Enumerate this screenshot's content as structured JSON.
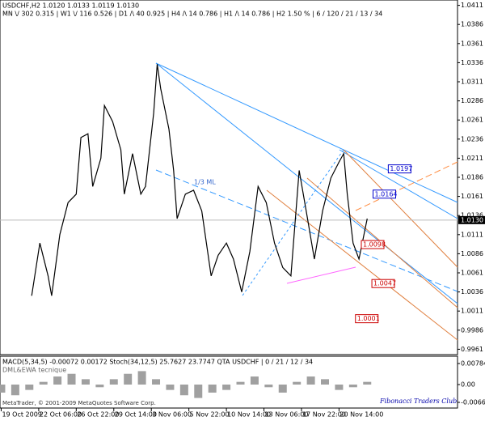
{
  "chart_data": {
    "type": "line",
    "title": "USDCHF,H2  1.0120 1.0133 1.0119 1.0130",
    "subtitle": "MN \\/ 302   0.315  |  W1 \\/ 116   0.526  |  D1 /\\ 40   0.925  |  H4 /\\ 14   0.786  |  H1 /\\ 14   0.786  |  H2   1.50 %  |  6 / 120 / 21 / 13 / 34",
    "x": [
      26,
      33,
      40,
      43,
      50,
      57,
      64,
      68,
      74,
      78,
      85,
      88,
      95,
      102,
      105,
      112,
      119,
      123,
      130,
      133,
      136,
      143,
      147,
      150,
      157,
      164,
      171,
      179,
      185,
      192,
      198,
      205,
      212,
      219,
      226,
      233,
      240,
      247,
      254,
      260,
      267,
      274,
      281,
      288,
      292,
      295,
      300,
      305,
      312
    ],
    "values": [
      1.0031,
      1.01,
      1.0057,
      1.0031,
      1.0111,
      1.0153,
      1.0164,
      1.0238,
      1.0243,
      1.0174,
      1.0211,
      1.028,
      1.0259,
      1.0222,
      1.0164,
      1.0217,
      1.0164,
      1.0174,
      1.027,
      1.0334,
      1.0302,
      1.0249,
      1.0195,
      1.0132,
      1.0164,
      1.0169,
      1.0142,
      1.0057,
      1.0084,
      1.01,
      1.0079,
      1.0036,
      1.0089,
      1.0174,
      1.0153,
      1.01,
      1.0068,
      1.0057,
      1.0195,
      1.0142,
      1.0079,
      1.0142,
      1.0185,
      1.0206,
      1.0217,
      1.0164,
      1.01,
      1.0079,
      1.0132
    ],
    "color": "#000000",
    "xlim": [
      -1,
      389
    ],
    "xticks": [
      {
        "value": 0,
        "label": "19 Oct 2009"
      },
      {
        "value": 32,
        "label": "22 Oct 06:00"
      },
      {
        "value": 64,
        "label": "26 Oct 22:00"
      },
      {
        "value": 96,
        "label": "29 Oct 14:00"
      },
      {
        "value": 128,
        "label": "3 Nov 06:00"
      },
      {
        "value": 160,
        "label": "5 Nov 22:00"
      },
      {
        "value": 192,
        "label": "10 Nov 14:00"
      },
      {
        "value": 224,
        "label": "13 Nov 06:00"
      },
      {
        "value": 256,
        "label": "17 Nov 22:00"
      },
      {
        "value": 288,
        "label": "20 Nov 14:00"
      }
    ],
    "ylim": [
      0.9954,
      1.0418
    ],
    "yticks": [
      1.0411,
      1.0386,
      1.0361,
      1.0336,
      1.0311,
      1.0286,
      1.0261,
      1.0236,
      1.0211,
      1.0186,
      1.0161,
      1.0136,
      1.0111,
      1.0086,
      1.0061,
      1.0036,
      1.0011,
      0.9986,
      0.9961
    ],
    "current_price": {
      "value": 1.013,
      "label": "1.0130"
    },
    "grid": false,
    "price_labels": [
      {
        "x": 330,
        "value": 1.0197,
        "color": "#0000cc"
      },
      {
        "x": 317,
        "value": 1.0164,
        "color": "#0000cc"
      },
      {
        "x": 307,
        "value": 1.0098,
        "color": "#cc0000"
      },
      {
        "x": 316,
        "value": 1.0047,
        "color": "#cc0000"
      },
      {
        "x": 302,
        "value": 1.0001,
        "color": "#cc0000"
      }
    ],
    "annotation": "1/3 ML",
    "indicator": {
      "title": "MACD(5,34,5) -0.00072 0.00172 Stoch(34,12,5) 25.7627 23.7747 QTA USDCHF | 0 / 21 / 12 / 34",
      "subtitle": "DML&EWA tecnique",
      "x": [
        0,
        12,
        24,
        36,
        48,
        60,
        72,
        84,
        96,
        108,
        120,
        132,
        144,
        156,
        168,
        180,
        192,
        204,
        216,
        228,
        240,
        252,
        264,
        276,
        288,
        300,
        312
      ],
      "values": [
        -0.003,
        -0.004,
        -0.002,
        0.001,
        0.003,
        0.004,
        0.002,
        -0.001,
        0.002,
        0.004,
        0.005,
        0.002,
        -0.002,
        -0.004,
        -0.005,
        -0.003,
        -0.002,
        0.001,
        0.003,
        -0.001,
        -0.003,
        0.001,
        0.003,
        0.002,
        -0.002,
        -0.001,
        0.001
      ],
      "color": "#a0a0a0",
      "ylim": [
        -0.00845,
        0.01025
      ],
      "yticks": [
        0.00784,
        {
          "value": 0,
          "label": "0.00"
        },
        -0.00664
      ]
    },
    "copyright": "MetaTrader, © 2001-2009 MetaQuotes Software Corp.",
    "watermark": "Fibonacci Traders Club"
  }
}
